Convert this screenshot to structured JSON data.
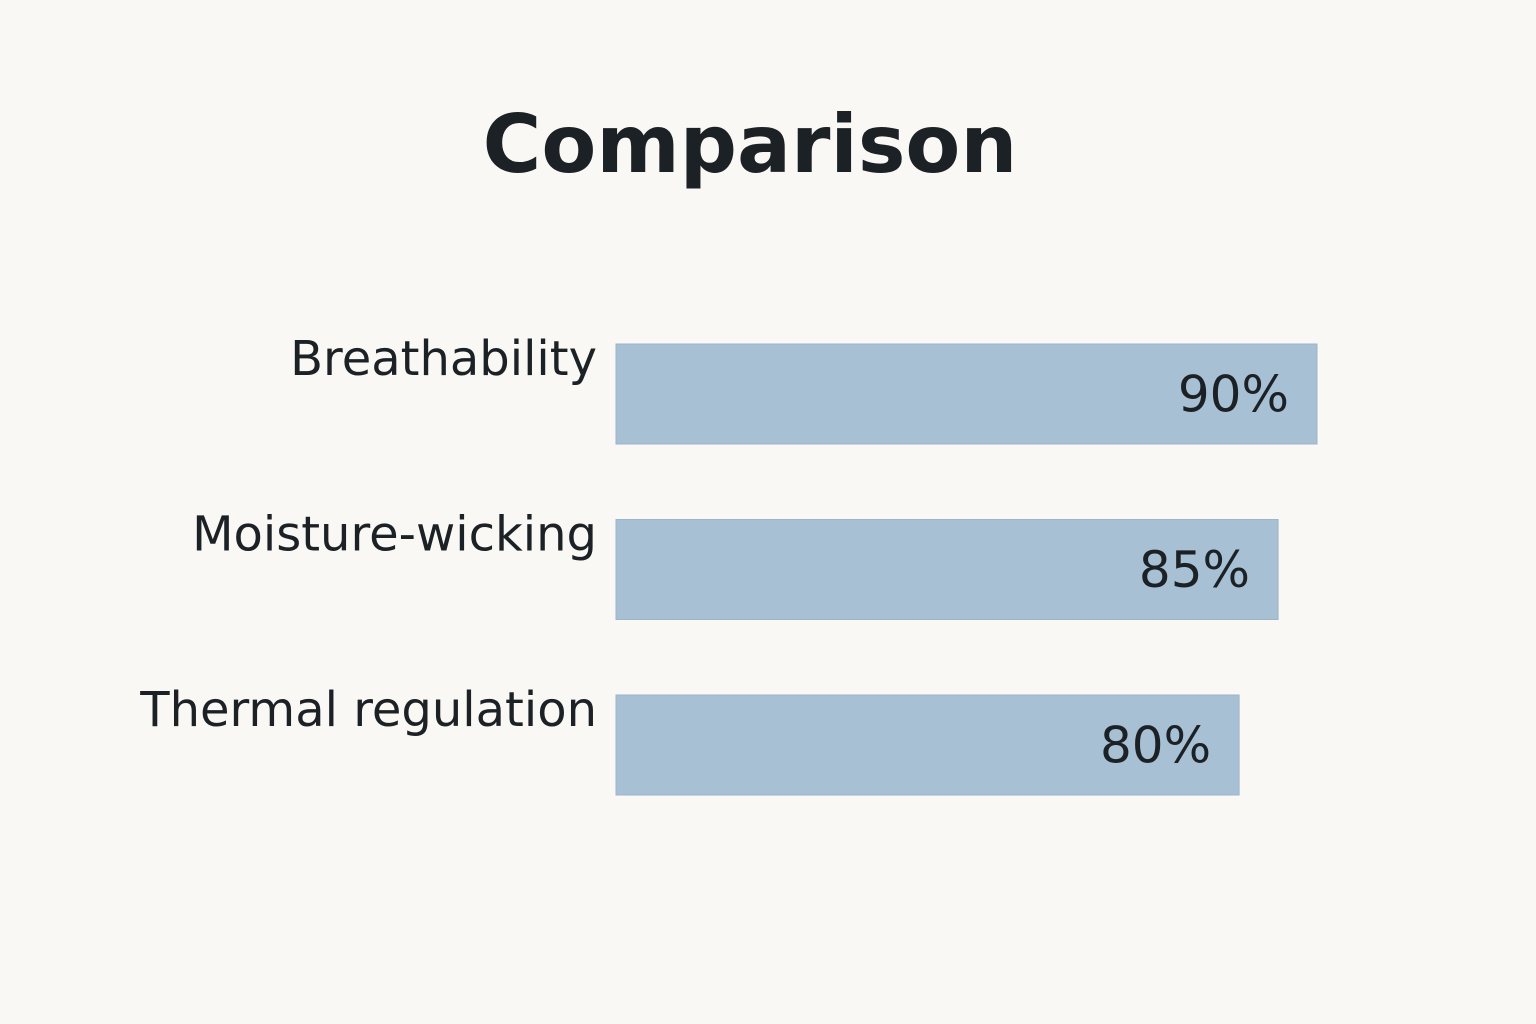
{
  "chart_data": {
    "type": "bar",
    "orientation": "horizontal",
    "title": "Comparison",
    "categories": [
      "Breathability",
      "Moisture-wicking",
      "Thermal regulation"
    ],
    "values": [
      90,
      85,
      80
    ],
    "value_labels": [
      "90%",
      "85%",
      "80%"
    ],
    "color": "#a7c0d4"
  }
}
